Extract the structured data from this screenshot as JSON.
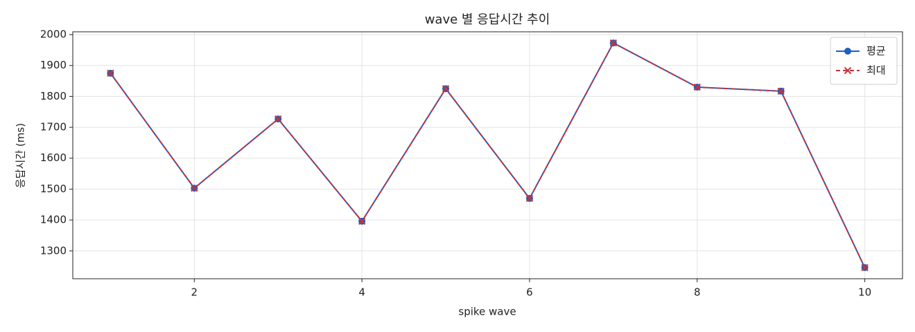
{
  "chart_data": {
    "type": "line",
    "title": "wave 별 응답시간 추이",
    "x_label": "spike wave",
    "y_label": "응답시간 (ms)",
    "x": [
      1,
      2,
      3,
      4,
      5,
      6,
      7,
      8,
      9,
      10
    ],
    "series": [
      {
        "name": "평균",
        "color": "#1f5fbf",
        "marker": "o",
        "dash": false,
        "values": [
          1875,
          1503,
          1727,
          1396,
          1825,
          1470,
          1973,
          1830,
          1817,
          1246
        ]
      },
      {
        "name": "최대",
        "color": "#c8323a",
        "marker": "x",
        "dash": true,
        "values": [
          1875,
          1503,
          1727,
          1396,
          1825,
          1470,
          1973,
          1830,
          1817,
          1246
        ]
      }
    ],
    "xlim": [
      0.55,
      10.45
    ],
    "xticks": [
      2,
      4,
      6,
      8,
      10
    ],
    "ylim": [
      1210,
      2009
    ],
    "yticks": [
      1300,
      1400,
      1500,
      1600,
      1700,
      1800,
      1900,
      2000
    ],
    "grid": true,
    "legend": "upper right"
  }
}
